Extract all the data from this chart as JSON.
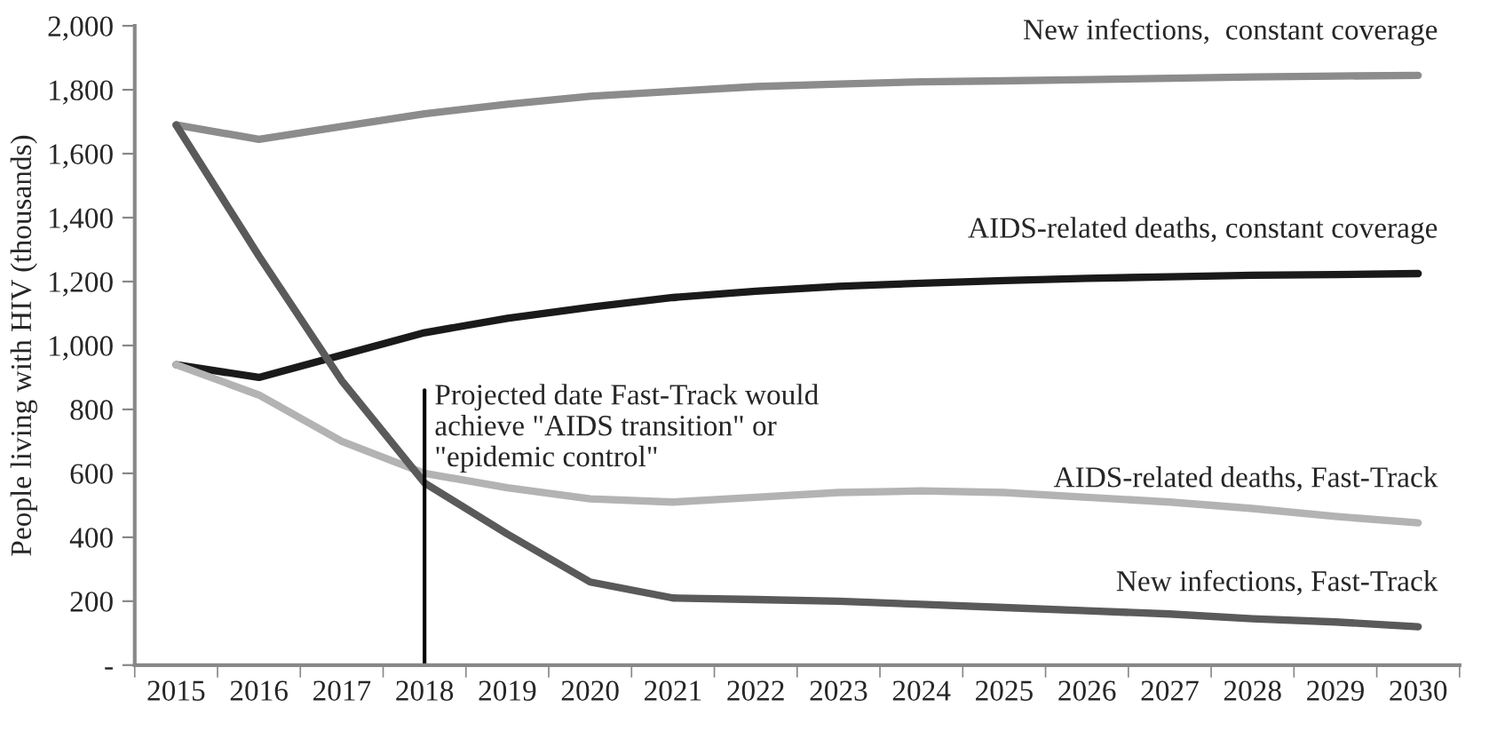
{
  "chart_data": {
    "type": "line",
    "ylabel": "People living with HIV (thousands)",
    "categories": [
      "2015",
      "2016",
      "2017",
      "2018",
      "2019",
      "2020",
      "2021",
      "2022",
      "2023",
      "2024",
      "2025",
      "2026",
      "2027",
      "2028",
      "2029",
      "2030"
    ],
    "series": [
      {
        "name": "New infections,  constant coverage",
        "color": "#8c8c8c",
        "values": [
          1690,
          1645,
          1685,
          1725,
          1755,
          1780,
          1795,
          1810,
          1818,
          1825,
          1828,
          1832,
          1836,
          1840,
          1843,
          1845
        ]
      },
      {
        "name": "AIDS-related deaths, constant coverage",
        "color": "#1a1a1a",
        "values": [
          940,
          900,
          970,
          1040,
          1085,
          1120,
          1150,
          1170,
          1185,
          1195,
          1203,
          1210,
          1215,
          1220,
          1222,
          1225
        ]
      },
      {
        "name": "AIDS-related deaths, Fast-Track",
        "color": "#b3b3b3",
        "values": [
          940,
          845,
          700,
          600,
          555,
          520,
          510,
          525,
          540,
          545,
          540,
          525,
          510,
          490,
          465,
          445
        ]
      },
      {
        "name": "New infections, Fast-Track",
        "color": "#5a5a5a",
        "values": [
          1690,
          1280,
          890,
          570,
          410,
          260,
          210,
          205,
          200,
          190,
          180,
          170,
          160,
          145,
          135,
          120
        ]
      }
    ],
    "ylim": [
      0,
      2000
    ],
    "yticks": [
      {
        "value": 0,
        "label": "-"
      },
      200,
      400,
      600,
      800,
      {
        "value": 1000,
        "label": "1,000"
      },
      {
        "value": 1200,
        "label": "1,200"
      },
      {
        "value": 1400,
        "label": "1,400"
      },
      {
        "value": 1600,
        "label": "1,600"
      },
      {
        "value": 1800,
        "label": "1,800"
      },
      {
        "value": 2000,
        "label": "2,000"
      }
    ],
    "ref_lines": [
      {
        "axis": "x",
        "value": "2018",
        "label": "Projected date Fast-Track would\nachieve \"AIDS transition\" or\n\"epidemic control\"",
        "color": "#000000"
      }
    ],
    "grid": false,
    "legend": false,
    "marker": "none",
    "line_style": "solid"
  }
}
